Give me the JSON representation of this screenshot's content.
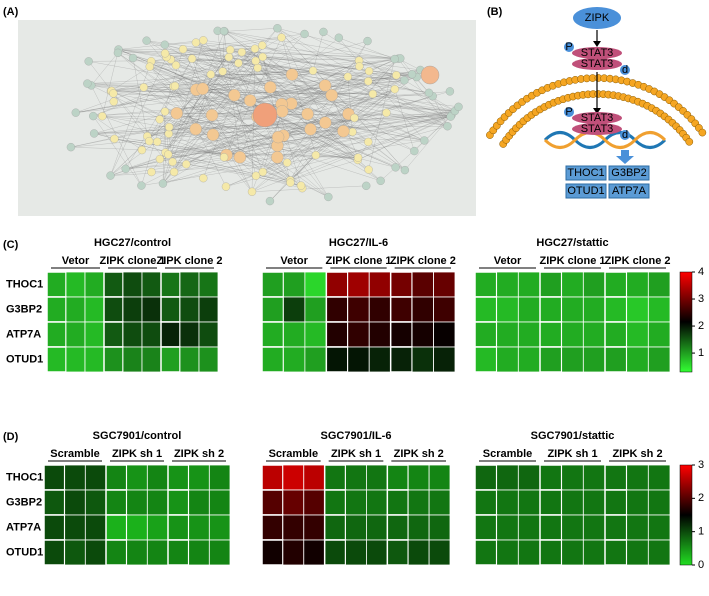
{
  "panels": [
    "(A)",
    "(B)",
    "(C)",
    "(D)"
  ],
  "diagram": {
    "kinase": "ZIPK",
    "phospho": [
      "P",
      "P"
    ],
    "dimer_top": [
      "STAT3",
      "STAT3"
    ],
    "dimer_bottom": [
      "STAT3",
      "STAT3"
    ],
    "d_marks": [
      "d",
      "d"
    ],
    "genes": [
      "THOC1",
      "G3BP2",
      "OTUD1",
      "ATP7A"
    ]
  },
  "chart_data": [
    {
      "type": "heatmap",
      "title": "HGC27/control",
      "groups": [
        "Vetor",
        "ZIPK clone 1",
        "ZIPK clone 2"
      ],
      "rows": [
        "THOC1",
        "G3BP2",
        "ATP7A",
        "OTUD1"
      ],
      "zlim": [
        0.3,
        4
      ],
      "colors": [
        "#33ff33",
        "#000000",
        "#ff0000"
      ],
      "values": [
        [
          0.9,
          0.8,
          0.9,
          1.5,
          1.6,
          1.5,
          1.3,
          1.4,
          1.3
        ],
        [
          0.9,
          0.9,
          0.8,
          1.6,
          1.7,
          1.8,
          1.5,
          1.6,
          1.7
        ],
        [
          0.9,
          0.9,
          0.8,
          1.5,
          1.6,
          1.6,
          1.9,
          1.8,
          1.6
        ],
        [
          0.8,
          0.8,
          0.8,
          1.1,
          1.2,
          1.2,
          1.0,
          1.1,
          1.1
        ]
      ]
    },
    {
      "type": "heatmap",
      "title": "HGC27/IL-6",
      "groups": [
        "Vetor",
        "ZIPK clone 1",
        "ZIPK clone 2"
      ],
      "zlim": [
        0.3,
        4
      ],
      "colors": [
        "#33ff33",
        "#000000",
        "#ff0000"
      ],
      "values": [
        [
          1.0,
          1.0,
          0.6,
          3.2,
          3.3,
          3.2,
          3.0,
          2.8,
          2.9
        ],
        [
          1.0,
          1.7,
          1.0,
          2.5,
          2.6,
          2.5,
          2.6,
          2.5,
          2.6
        ],
        [
          0.9,
          0.9,
          0.8,
          2.4,
          2.5,
          2.4,
          2.3,
          2.3,
          2.2
        ],
        [
          0.9,
          0.9,
          1.0,
          2.0,
          2.0,
          1.9,
          1.9,
          1.8,
          1.9
        ]
      ]
    },
    {
      "type": "heatmap",
      "title": "HGC27/stattic",
      "groups": [
        "Vetor",
        "ZIPK clone 1",
        "ZIPK clone 2"
      ],
      "zlim": [
        0.3,
        4
      ],
      "zticks": [
        1,
        2,
        3,
        4
      ],
      "colors": [
        "#33ff33",
        "#000000",
        "#ff0000"
      ],
      "values": [
        [
          0.9,
          0.9,
          0.9,
          1.0,
          0.9,
          1.0,
          0.9,
          0.9,
          1.0
        ],
        [
          0.8,
          0.8,
          0.9,
          0.9,
          0.9,
          0.9,
          0.8,
          0.7,
          0.8
        ],
        [
          0.9,
          0.9,
          0.9,
          0.9,
          0.9,
          0.9,
          0.9,
          0.8,
          0.9
        ],
        [
          0.8,
          0.9,
          0.9,
          1.0,
          1.0,
          1.0,
          1.0,
          0.9,
          1.0
        ]
      ]
    },
    {
      "type": "heatmap",
      "title": "SGC7901/control",
      "groups": [
        "Scramble",
        "ZIPK sh 1",
        "ZIPK sh 2"
      ],
      "rows": [
        "THOC1",
        "G3BP2",
        "ATP7A",
        "OTUD1"
      ],
      "zlim": [
        0,
        3
      ],
      "colors": [
        "#22dd22",
        "#000000",
        "#ff0000"
      ],
      "values": [
        [
          1.0,
          1.0,
          1.0,
          0.6,
          0.5,
          0.6,
          0.5,
          0.5,
          0.6
        ],
        [
          0.9,
          1.0,
          0.9,
          0.6,
          0.6,
          0.6,
          0.5,
          0.6,
          0.6
        ],
        [
          1.0,
          1.0,
          1.0,
          0.3,
          0.3,
          0.4,
          0.5,
          0.5,
          0.5
        ],
        [
          1.0,
          0.9,
          1.0,
          0.6,
          0.6,
          0.6,
          0.6,
          0.6,
          0.6
        ]
      ]
    },
    {
      "type": "heatmap",
      "title": "SGC7901/IL-6",
      "groups": [
        "Scramble",
        "ZIPK sh 1",
        "ZIPK sh 2"
      ],
      "zlim": [
        0,
        3
      ],
      "colors": [
        "#22dd22",
        "#000000",
        "#ff0000"
      ],
      "values": [
        [
          2.6,
          2.7,
          2.6,
          0.7,
          0.7,
          0.7,
          0.6,
          0.6,
          0.6
        ],
        [
          2.0,
          2.1,
          2.0,
          0.7,
          0.7,
          0.7,
          0.7,
          0.7,
          0.7
        ],
        [
          1.8,
          1.8,
          1.8,
          0.8,
          0.8,
          0.8,
          0.8,
          0.8,
          0.8
        ],
        [
          1.6,
          1.7,
          1.6,
          1.0,
          1.0,
          1.0,
          0.9,
          1.0,
          1.0
        ]
      ]
    },
    {
      "type": "heatmap",
      "title": "SGC7901/stattic",
      "groups": [
        "Scramble",
        "ZIPK sh 1",
        "ZIPK sh 2"
      ],
      "zlim": [
        0,
        3
      ],
      "zticks": [
        0,
        1,
        2,
        3
      ],
      "colors": [
        "#22dd22",
        "#000000",
        "#ff0000"
      ],
      "values": [
        [
          0.8,
          0.8,
          0.8,
          0.7,
          0.7,
          0.7,
          0.7,
          0.7,
          0.7
        ],
        [
          0.7,
          0.7,
          0.7,
          0.7,
          0.7,
          0.7,
          0.7,
          0.7,
          0.7
        ],
        [
          0.7,
          0.7,
          0.7,
          0.7,
          0.7,
          0.7,
          0.7,
          0.7,
          0.7
        ],
        [
          0.7,
          0.7,
          0.7,
          0.7,
          0.7,
          0.7,
          0.7,
          0.7,
          0.7
        ]
      ]
    }
  ]
}
